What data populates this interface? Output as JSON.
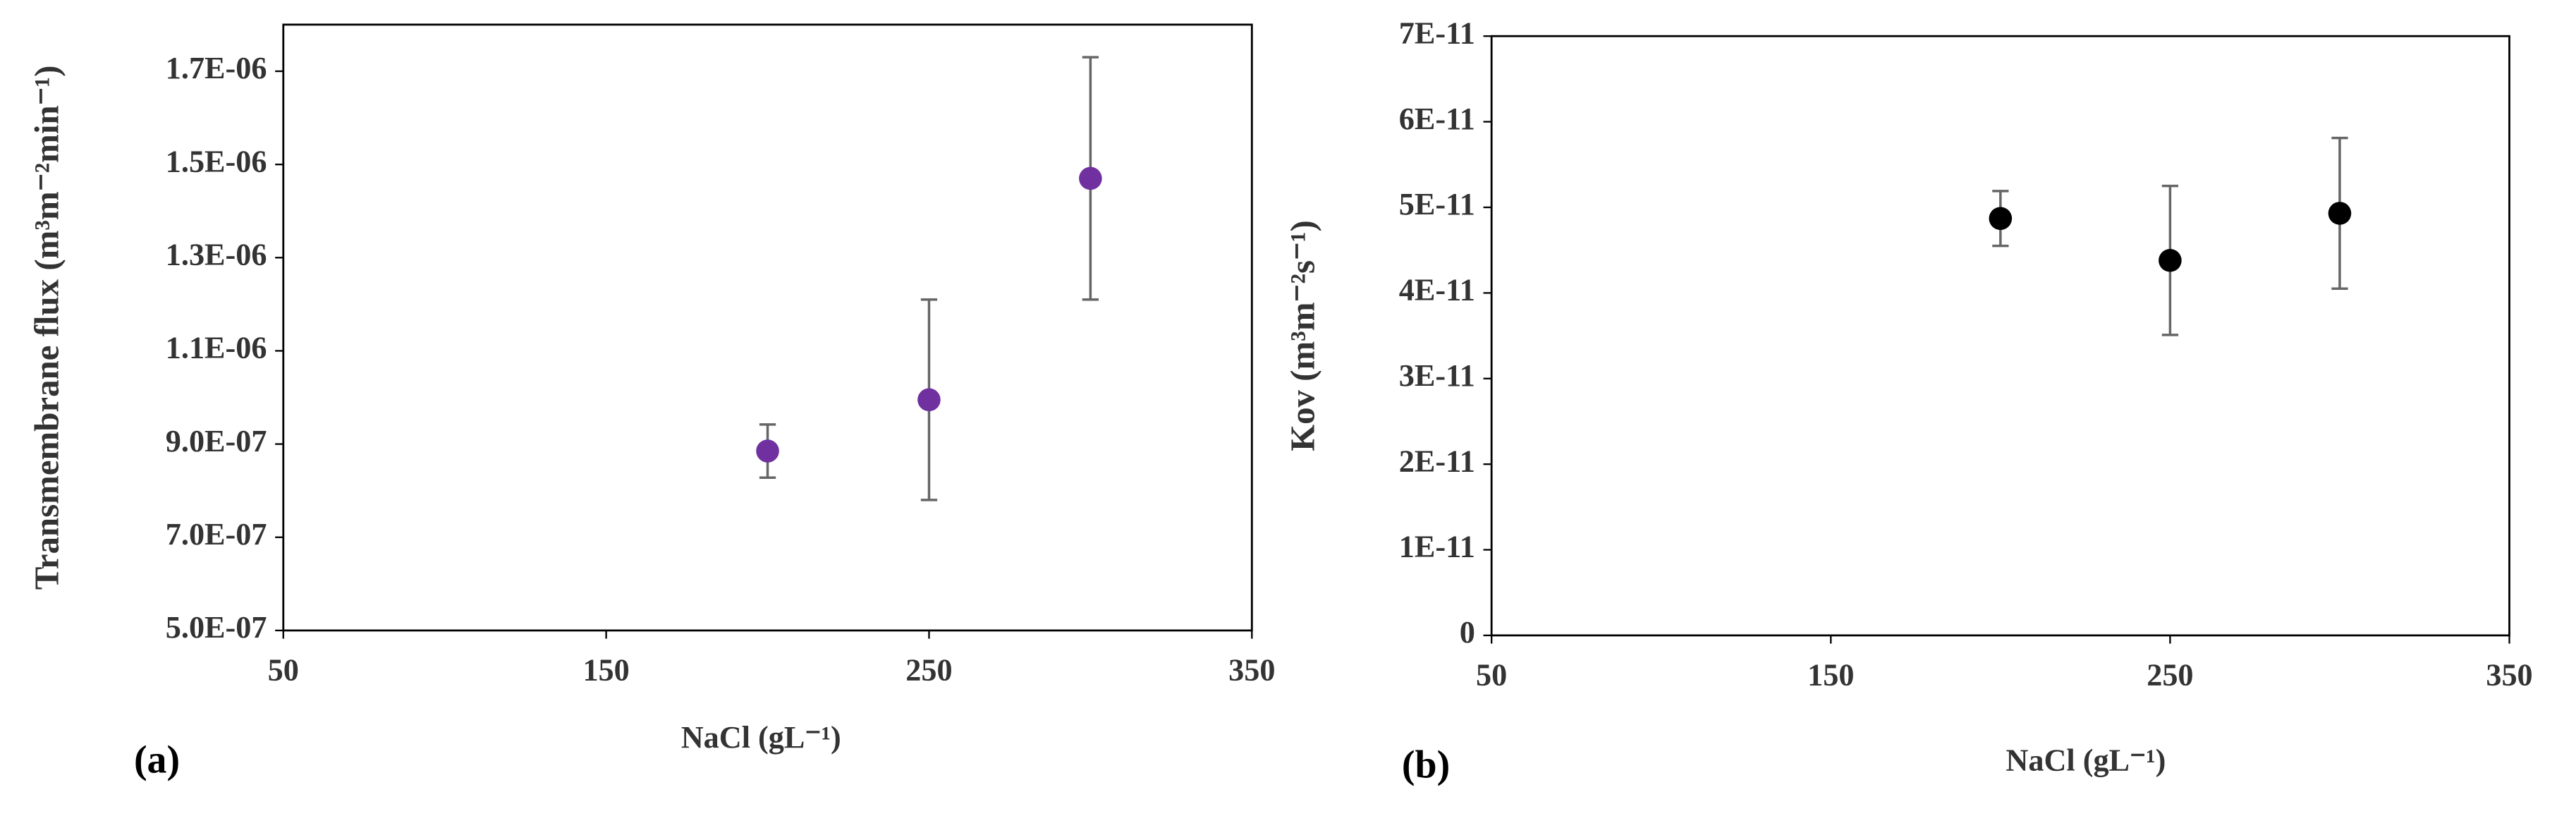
{
  "chart_data": [
    {
      "type": "scatter",
      "panel_label": "(a)",
      "xlabel": "NaCl (gL⁻¹)",
      "ylabel": "Transmembrane flux (m³m⁻²min⁻¹)",
      "xlim": [
        50,
        350
      ],
      "xticks": [
        50,
        150,
        250,
        350
      ],
      "ylim": [
        5e-07,
        1.8e-06
      ],
      "yticks": [
        {
          "value": 5e-07,
          "label": "5.0E-07"
        },
        {
          "value": 7e-07,
          "label": "7.0E-07"
        },
        {
          "value": 9e-07,
          "label": "9.0E-07"
        },
        {
          "value": 1.1e-06,
          "label": "1.1E-06"
        },
        {
          "value": 1.3e-06,
          "label": "1.3E-06"
        },
        {
          "value": 1.5e-06,
          "label": "1.5E-06"
        },
        {
          "value": 1.7e-06,
          "label": "1.7E-06"
        }
      ],
      "series": [
        {
          "color": "#7030a0",
          "x": [
            200,
            250,
            300
          ],
          "values": [
            8.85e-07,
            9.95e-07,
            1.47e-06
          ],
          "errors": [
            5.7e-08,
            2.15e-07,
            2.6e-07
          ]
        }
      ]
    },
    {
      "type": "scatter",
      "panel_label": "(b)",
      "xlabel": "NaCl (gL⁻¹)",
      "ylabel": "Kov (m³m⁻²s⁻¹)",
      "xlim": [
        50,
        350
      ],
      "xticks": [
        50,
        150,
        250,
        350
      ],
      "ylim": [
        0,
        7e-11
      ],
      "yticks": [
        0,
        {
          "value": 1e-11,
          "label": "1E-11"
        },
        {
          "value": 2e-11,
          "label": "2E-11"
        },
        {
          "value": 3e-11,
          "label": "3E-11"
        },
        {
          "value": 4e-11,
          "label": "4E-11"
        },
        {
          "value": 5e-11,
          "label": "5E-11"
        },
        {
          "value": 6e-11,
          "label": "6E-11"
        },
        {
          "value": 7e-11,
          "label": "7E-11"
        }
      ],
      "series": [
        {
          "color": "#000000",
          "x": [
            200,
            250,
            300
          ],
          "values": [
            4.87e-11,
            4.38e-11,
            4.93e-11
          ],
          "errors": [
            3.2e-12,
            8.7e-12,
            8.8e-12
          ]
        }
      ]
    }
  ]
}
